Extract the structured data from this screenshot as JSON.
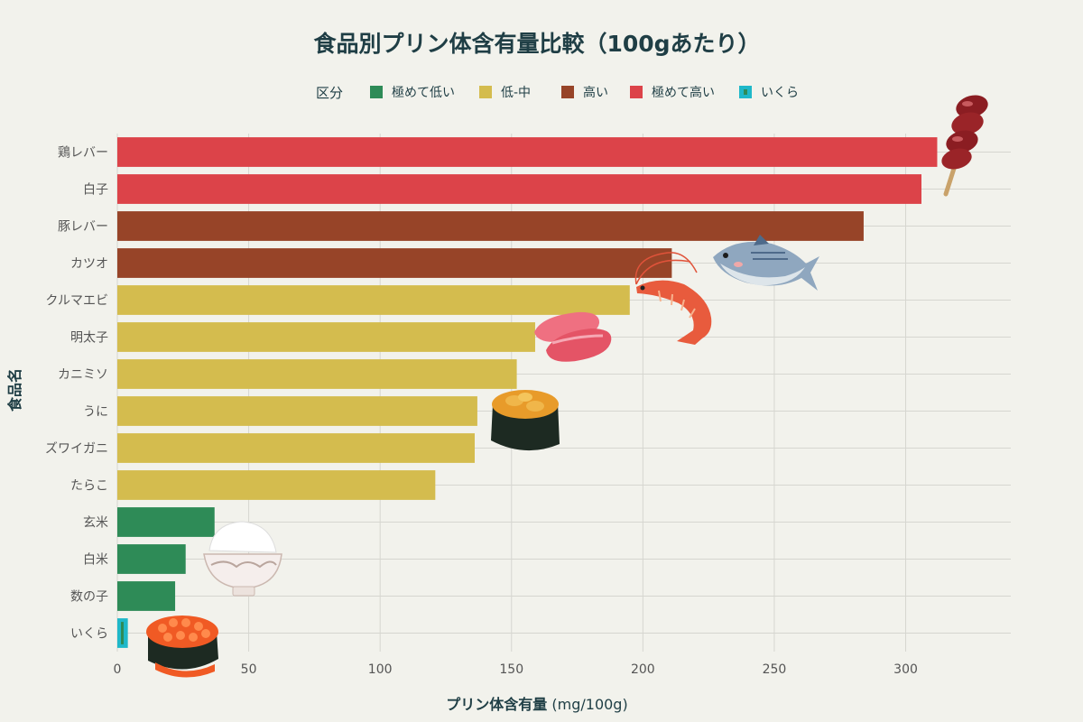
{
  "chart_data": {
    "type": "bar",
    "orientation": "horizontal",
    "title": "食品別プリン体含有量比較（100gあたり）",
    "xlabel_bold": "プリン体含有量",
    "xlabel_unit": " (mg/100g)",
    "ylabel": "食品名",
    "xlim": [
      0,
      340
    ],
    "xticks": [
      0,
      50,
      100,
      150,
      200,
      250,
      300
    ],
    "grid": true,
    "legend": {
      "title": "区分",
      "placement": "top-center",
      "entries": [
        {
          "label": "極めて低い",
          "color": "#2e8b57"
        },
        {
          "label": "低-中",
          "color": "#d4bc4e"
        },
        {
          "label": "高い",
          "color": "#974428"
        },
        {
          "label": "極めて高い",
          "color": "#dc4349"
        },
        {
          "label": "いくら",
          "color": "#1fb8c9"
        }
      ]
    },
    "bars": [
      {
        "category": "鶏レバー",
        "value": 312,
        "group": "極めて高い"
      },
      {
        "category": "白子",
        "value": 306,
        "group": "極めて高い"
      },
      {
        "category": "豚レバー",
        "value": 284,
        "group": "高い"
      },
      {
        "category": "カツオ",
        "value": 211,
        "group": "高い"
      },
      {
        "category": "クルマエビ",
        "value": 195,
        "group": "低-中"
      },
      {
        "category": "明太子",
        "value": 159,
        "group": "低-中"
      },
      {
        "category": "カニミソ",
        "value": 152,
        "group": "低-中"
      },
      {
        "category": "うに",
        "value": 137,
        "group": "低-中"
      },
      {
        "category": "ズワイガニ",
        "value": 136,
        "group": "低-中"
      },
      {
        "category": "たらこ",
        "value": 121,
        "group": "低-中"
      },
      {
        "category": "玄米",
        "value": 37,
        "group": "極めて低い"
      },
      {
        "category": "白米",
        "value": 26,
        "group": "極めて低い"
      },
      {
        "category": "数の子",
        "value": 22,
        "group": "極めて低い"
      },
      {
        "category": "いくら",
        "value": 4,
        "group": "いくら"
      }
    ]
  },
  "illustrations": [
    "yakitori-liver-icon",
    "bonito-icon",
    "shrimp-icon",
    "mentaiko-icon",
    "uni-sushi-icon",
    "rice-bowl-icon",
    "ikura-sushi-icon"
  ]
}
